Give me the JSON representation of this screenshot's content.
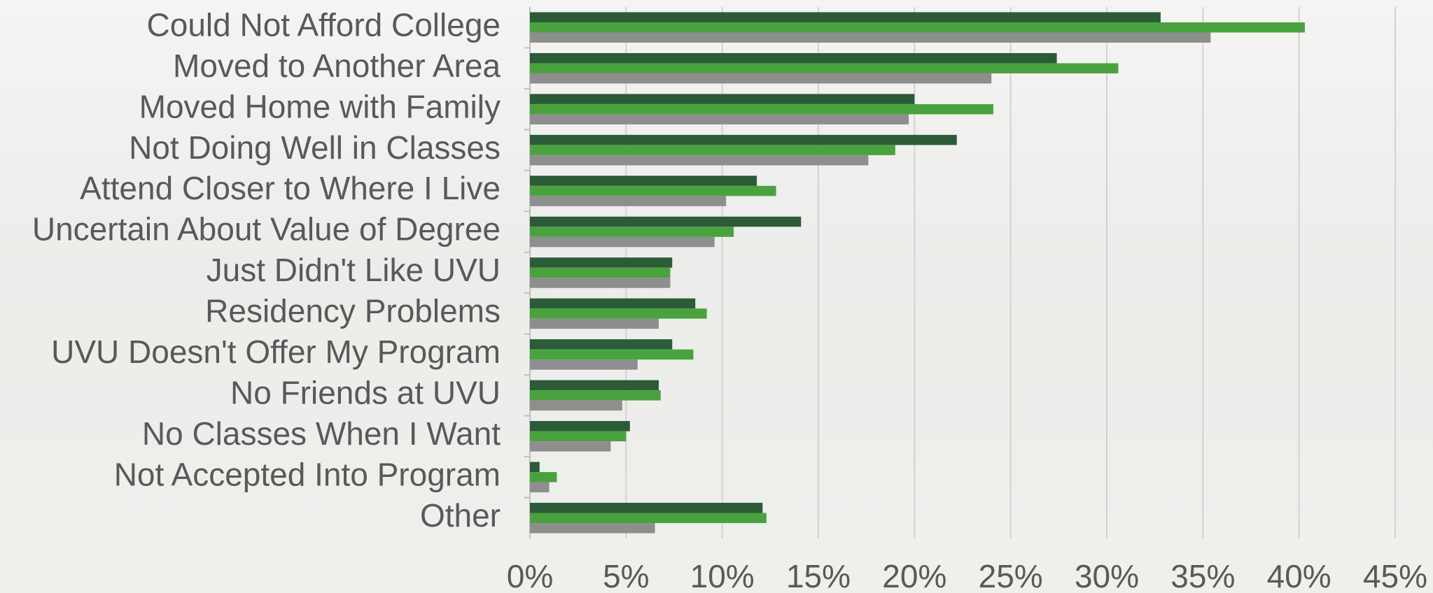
{
  "chart_data": {
    "type": "hbar",
    "categories": [
      "Could Not Afford College",
      "Moved to Another Area",
      "Moved Home with Family",
      "Not Doing Well in Classes",
      "Attend Closer to Where I Live",
      "Uncertain About Value of Degree",
      "Just Didn't Like UVU",
      "Residency Problems",
      "UVU Doesn't Offer My Program",
      "No Friends at UVU",
      "No Classes When I Want",
      "Not Accepted Into Program",
      "Other"
    ],
    "series": [
      {
        "color": "#2b5b37",
        "values": [
          32.8,
          27.4,
          20.0,
          22.2,
          11.8,
          14.1,
          7.4,
          8.6,
          7.4,
          6.7,
          5.2,
          0.5,
          12.1
        ]
      },
      {
        "color": "#4aa23f",
        "values": [
          40.3,
          30.6,
          24.1,
          19.0,
          12.8,
          10.6,
          7.3,
          9.2,
          8.5,
          6.8,
          5.0,
          1.4,
          12.3
        ]
      },
      {
        "color": "#8e8e8e",
        "values": [
          35.4,
          24.0,
          19.7,
          17.6,
          10.2,
          9.6,
          7.3,
          6.7,
          5.6,
          4.8,
          4.2,
          1.0,
          6.5
        ]
      }
    ],
    "xlim": [
      0,
      45
    ],
    "xticks": [
      {
        "value": 0,
        "label": "0%"
      },
      {
        "value": 5,
        "label": "5%"
      },
      {
        "value": 10,
        "label": "10%"
      },
      {
        "value": 15,
        "label": "15%"
      },
      {
        "value": 20,
        "label": "20%"
      },
      {
        "value": 25,
        "label": "25%"
      },
      {
        "value": 30,
        "label": "30%"
      },
      {
        "value": 35,
        "label": "35%"
      },
      {
        "value": 40,
        "label": "40%"
      },
      {
        "value": 45,
        "label": "45%"
      }
    ],
    "grid": true
  }
}
